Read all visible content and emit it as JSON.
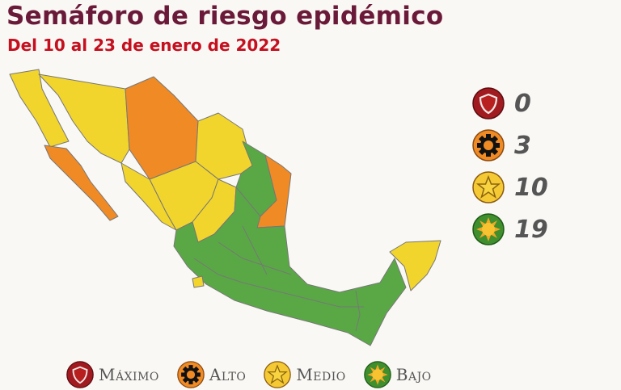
{
  "header": {
    "title": "Semáforo de riesgo epidémico",
    "subtitle": "Del 10 al 23 de enero de 2022"
  },
  "colors": {
    "maximo": "#a11a1f",
    "alto": "#f08a24",
    "medio": "#f2d52c",
    "bajo": "#5aa845"
  },
  "counts": [
    {
      "level": "maximo",
      "icon": "shield-icon",
      "value": "0"
    },
    {
      "level": "alto",
      "icon": "gear-icon",
      "value": "3"
    },
    {
      "level": "medio",
      "icon": "star-icon",
      "value": "10"
    },
    {
      "level": "bajo",
      "icon": "sun-icon",
      "value": "19"
    }
  ],
  "legend": [
    {
      "level": "maximo",
      "label": "Máximo"
    },
    {
      "level": "alto",
      "label": "Alto"
    },
    {
      "level": "medio",
      "label": "Medio"
    },
    {
      "level": "bajo",
      "label": "Bajo"
    }
  ]
}
